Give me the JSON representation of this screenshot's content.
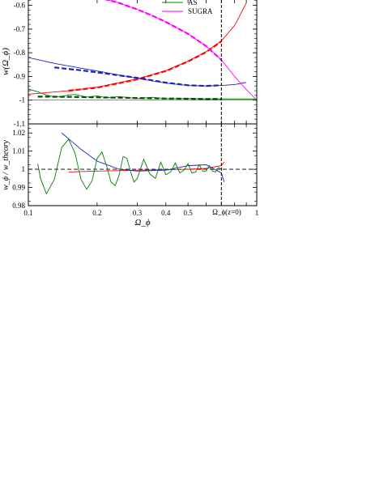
{
  "chart_data": [
    {
      "type": "line",
      "panel": "top",
      "ylabel": "w(Ω_ϕ)",
      "xscale": "log",
      "xlim": [
        0.1,
        1.0
      ],
      "ylim": [
        -1.1,
        -0.55
      ],
      "yticks": [
        -1.1,
        -1,
        -0.9,
        -0.8,
        -0.7,
        -0.6
      ],
      "ytick_labels": [
        "-1.1",
        "-1",
        "-0.9",
        "-0.8",
        "-0.7",
        "-0.6"
      ],
      "legend": {
        "placement": "top-right",
        "entries": [
          "AS",
          "SUGRA"
        ]
      },
      "vline": {
        "x": 0.7,
        "label": "Ω_ϕ(z=0)"
      },
      "series": [
        {
          "name": "",
          "color": "#ff0000",
          "style": "thin",
          "x": [
            0.1,
            0.15,
            0.2,
            0.3,
            0.4,
            0.5,
            0.6,
            0.7,
            0.8,
            0.9
          ],
          "y": [
            -0.975,
            -0.96,
            -0.945,
            -0.91,
            -0.875,
            -0.835,
            -0.795,
            -0.75,
            -0.685,
            -0.59
          ]
        },
        {
          "name": "",
          "color": "#ff0000",
          "style": "thick-dashed",
          "x": [
            0.15,
            0.2,
            0.3,
            0.4,
            0.5,
            0.6,
            0.7
          ],
          "y": [
            -0.96,
            -0.947,
            -0.912,
            -0.877,
            -0.837,
            -0.797,
            -0.752
          ]
        },
        {
          "name": "",
          "color": "#2020c0",
          "style": "thin",
          "x": [
            0.1,
            0.13,
            0.17,
            0.22,
            0.3,
            0.4,
            0.5,
            0.6,
            0.7,
            0.8,
            0.9
          ],
          "y": [
            -0.82,
            -0.845,
            -0.865,
            -0.884,
            -0.908,
            -0.928,
            -0.938,
            -0.94,
            -0.938,
            -0.934,
            -0.925
          ]
        },
        {
          "name": "",
          "color": "#2020c0",
          "style": "thick-dashed",
          "x": [
            0.13,
            0.17,
            0.22,
            0.3,
            0.4,
            0.5,
            0.6,
            0.7
          ],
          "y": [
            -0.862,
            -0.874,
            -0.888,
            -0.906,
            -0.926,
            -0.937,
            -0.94,
            -0.937
          ]
        },
        {
          "name": "AS",
          "color": "#008000",
          "style": "thin-oscillating",
          "x": [
            0.1,
            0.11,
            0.12,
            0.13,
            0.14,
            0.15,
            0.16,
            0.18,
            0.2,
            0.22,
            0.25,
            0.3,
            0.35,
            0.4,
            0.5,
            0.6,
            0.7,
            0.8,
            1.0
          ],
          "y": [
            -0.953,
            -0.965,
            -0.978,
            -0.986,
            -0.984,
            -0.978,
            -0.976,
            -0.987,
            -0.982,
            -0.99,
            -0.985,
            -0.993,
            -0.988,
            -0.994,
            -0.993,
            -0.995,
            -0.995,
            -0.995,
            -0.995
          ]
        },
        {
          "name": "",
          "color": "#005000",
          "style": "thick-dashed",
          "x": [
            0.11,
            0.15,
            0.2,
            0.3,
            0.4,
            0.5,
            0.6,
            0.7
          ],
          "y": [
            -0.985,
            -0.986,
            -0.988,
            -0.991,
            -0.993,
            -0.994,
            -0.995,
            -0.995
          ]
        },
        {
          "name": "SUGRA",
          "color": "#ff00ff",
          "style": "thin",
          "x": [
            0.17,
            0.2,
            0.25,
            0.3,
            0.35,
            0.4,
            0.5,
            0.6,
            0.7,
            0.8,
            0.9,
            1.0
          ],
          "y": [
            -0.55,
            -0.565,
            -0.59,
            -0.617,
            -0.644,
            -0.67,
            -0.72,
            -0.772,
            -0.83,
            -0.9,
            -0.955,
            -1.0
          ]
        },
        {
          "name": "",
          "color": "#ff00ff",
          "style": "thick-dashed",
          "x": [
            0.2,
            0.25,
            0.3,
            0.35,
            0.4,
            0.5,
            0.6,
            0.7
          ],
          "y": [
            -0.565,
            -0.59,
            -0.617,
            -0.644,
            -0.67,
            -0.72,
            -0.772,
            -0.83
          ]
        }
      ]
    },
    {
      "type": "line",
      "panel": "bottom",
      "xlabel": "Ω_ϕ",
      "ylabel": "w_ϕ / w_theory",
      "xscale": "log",
      "xlim": [
        0.1,
        1.0
      ],
      "ylim": [
        0.98,
        1.025
      ],
      "xticks": [
        0.1,
        0.2,
        0.3,
        0.4,
        0.5,
        1.0
      ],
      "xtick_labels": [
        "0.1",
        "0.2",
        "0.3",
        "0.4",
        "0.5",
        "1"
      ],
      "yticks": [
        0.98,
        0.99,
        1.0,
        1.01,
        1.02
      ],
      "ytick_labels": [
        "0.98",
        "0.99",
        "1",
        "1.01",
        "1.02"
      ],
      "hline": 1.0,
      "vline": {
        "x": 0.7
      },
      "series": [
        {
          "name": "",
          "color": "#ff0000",
          "x": [
            0.15,
            0.2,
            0.3,
            0.4,
            0.5,
            0.6,
            0.7,
            0.72
          ],
          "y": [
            0.9985,
            0.999,
            0.9995,
            0.9998,
            1.0,
            1.0005,
            1.002,
            1.004
          ]
        },
        {
          "name": "",
          "color": "#2020c0",
          "x": [
            0.14,
            0.17,
            0.2,
            0.25,
            0.3,
            0.4,
            0.5,
            0.6,
            0.7,
            0.72
          ],
          "y": [
            1.02,
            1.011,
            1.0045,
            1.0,
            0.999,
            0.9995,
            1.002,
            1.0025,
            0.998,
            0.993
          ]
        },
        {
          "name": "AS",
          "color": "#008000",
          "x": [
            0.11,
            0.113,
            0.12,
            0.13,
            0.14,
            0.15,
            0.16,
            0.17,
            0.18,
            0.19,
            0.2,
            0.21,
            0.22,
            0.23,
            0.24,
            0.25,
            0.26,
            0.27,
            0.28,
            0.29,
            0.3,
            0.32,
            0.34,
            0.36,
            0.38,
            0.4,
            0.42,
            0.44,
            0.46,
            0.48,
            0.5,
            0.52,
            0.54,
            0.56,
            0.58,
            0.6,
            0.62,
            0.64,
            0.66,
            0.68,
            0.7
          ],
          "y": [
            1.003,
            0.995,
            0.9865,
            0.9945,
            1.012,
            1.0165,
            1.009,
            0.9945,
            0.989,
            0.9935,
            1.006,
            1.0095,
            1.002,
            0.993,
            0.991,
            0.997,
            1.007,
            1.006,
            0.999,
            0.993,
            0.995,
            1.0055,
            0.9975,
            0.995,
            1.004,
            0.997,
            0.9985,
            1.0035,
            0.998,
            0.9995,
            1.003,
            0.998,
            0.9985,
            1.0025,
            0.999,
            0.999,
            1.002,
            0.999,
            0.9985,
            1.001,
            1.0
          ]
        }
      ]
    }
  ]
}
